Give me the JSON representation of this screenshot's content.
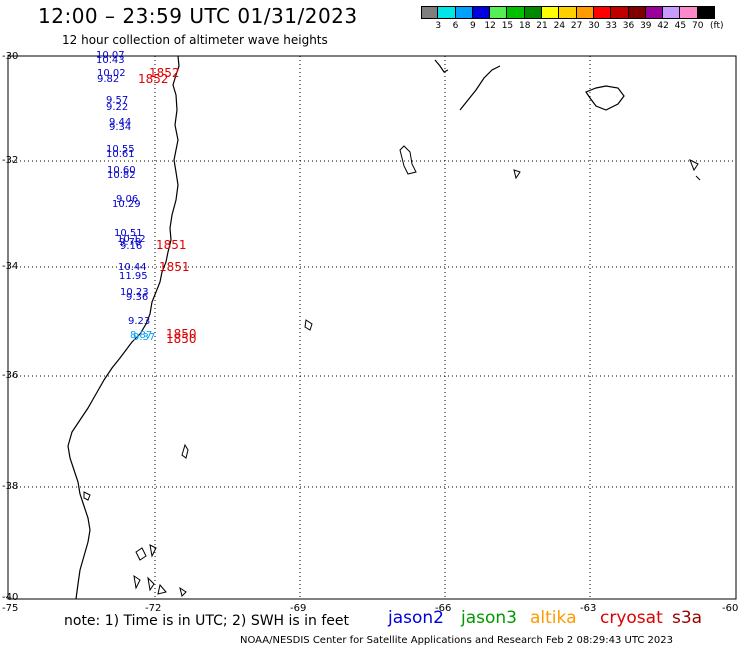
{
  "header": {
    "title": "12:00 – 23:59 UTC 01/31/2023",
    "subtitle": "12 hour collection of altimeter wave heights"
  },
  "color_scale": {
    "labels": [
      "3",
      "6",
      "9",
      "12",
      "15",
      "18",
      "21",
      "24",
      "27",
      "30",
      "33",
      "36",
      "39",
      "42",
      "45",
      "70"
    ],
    "unit": "(ft)",
    "colors": [
      "#7f7f7f",
      "#00e5e5",
      "#00a0ff",
      "#0000e0",
      "#55ee55",
      "#00c000",
      "#008800",
      "#ffff00",
      "#ffd000",
      "#ff9a00",
      "#ff0000",
      "#c00000",
      "#800000",
      "#9a009a",
      "#c89bff",
      "#ff88cc",
      "#000000"
    ]
  },
  "axes": {
    "lat_labels": [
      "-30",
      "-32",
      "-34",
      "-36",
      "-38",
      "-40"
    ],
    "lon_labels": [
      "-75",
      "-72",
      "-69",
      "-66",
      "-63",
      "-60"
    ]
  },
  "wave_labels": [
    {
      "text": "10.07",
      "color": "#0000cc"
    },
    {
      "text": "10.43",
      "color": "#0000cc"
    },
    {
      "text": "10.02",
      "color": "#0000cc"
    },
    {
      "text": "9.82",
      "color": "#0000cc"
    },
    {
      "text": "9.57",
      "color": "#0000cc"
    },
    {
      "text": "9.22",
      "color": "#0000cc"
    },
    {
      "text": "9.44",
      "color": "#0000cc"
    },
    {
      "text": "9.34",
      "color": "#0000cc"
    },
    {
      "text": "10.55",
      "color": "#0000cc"
    },
    {
      "text": "10.61",
      "color": "#0000cc"
    },
    {
      "text": "10.60",
      "color": "#0000cc"
    },
    {
      "text": "10.82",
      "color": "#0000cc"
    },
    {
      "text": "9.06",
      "color": "#0000cc"
    },
    {
      "text": "10.29",
      "color": "#0000cc"
    },
    {
      "text": "10.51",
      "color": "#0000cc"
    },
    {
      "text": "10.12",
      "color": "#0000cc"
    },
    {
      "text": "9.78",
      "color": "#0000cc"
    },
    {
      "text": "9.16",
      "color": "#0000cc"
    },
    {
      "text": "10.44",
      "color": "#0000cc"
    },
    {
      "text": "11.95",
      "color": "#0000cc"
    },
    {
      "text": "10.23",
      "color": "#0000cc"
    },
    {
      "text": "9.36",
      "color": "#0000cc"
    },
    {
      "text": "9.23",
      "color": "#0000cc"
    },
    {
      "text": "8.87",
      "color": "#00a0ff"
    },
    {
      "text": "9.37",
      "color": "#00a0ff"
    }
  ],
  "time_labels": [
    "1852",
    "1852",
    "1851",
    "1851",
    "1850",
    "1850"
  ],
  "footer": {
    "note": "note:  1) Time is in UTC;  2) SWH is in feet",
    "satellites": [
      {
        "name": "jason2",
        "color": "#0000dd"
      },
      {
        "name": "jason3",
        "color": "#009900"
      },
      {
        "name": "altika",
        "color": "#ff9900"
      },
      {
        "name": "cryosat",
        "color": "#dd0000"
      },
      {
        "name": "s3a",
        "color": "#990000"
      }
    ],
    "credit": "NOAA/NESDIS Center for Satellite Applications and Research    Feb  2 08:29:43 UTC 2023"
  }
}
